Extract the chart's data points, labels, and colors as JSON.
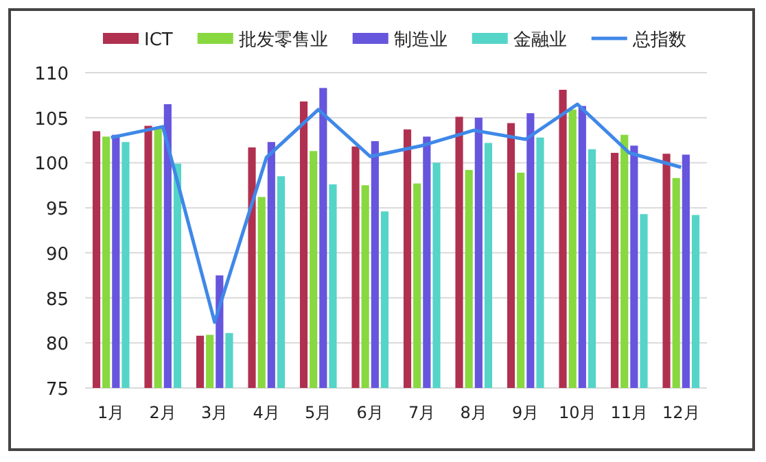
{
  "chart_data": {
    "type": "bar",
    "categories": [
      "1月",
      "2月",
      "3月",
      "4月",
      "5月",
      "6月",
      "7月",
      "8月",
      "9月",
      "10月",
      "11月",
      "12月"
    ],
    "series": [
      {
        "name": "ICT",
        "color": "#b03050",
        "values": [
          103.5,
          104.1,
          80.8,
          101.7,
          106.8,
          101.8,
          103.7,
          105.1,
          104.4,
          108.1,
          101.1,
          101.0
        ]
      },
      {
        "name": "批发零售业",
        "color": "#88d840",
        "values": [
          102.9,
          103.8,
          80.9,
          96.2,
          101.3,
          97.5,
          97.7,
          99.2,
          98.9,
          105.9,
          103.1,
          98.3
        ]
      },
      {
        "name": "制造业",
        "color": "#6655dd",
        "values": [
          103.1,
          106.5,
          87.5,
          102.3,
          108.3,
          102.4,
          102.9,
          105.0,
          105.5,
          106.3,
          101.9,
          100.9
        ]
      },
      {
        "name": "金融业",
        "color": "#55d4c8",
        "values": [
          102.3,
          99.9,
          81.1,
          98.5,
          97.6,
          94.6,
          100.0,
          102.2,
          102.8,
          101.5,
          94.3,
          94.2
        ]
      },
      {
        "name": "总指数",
        "type": "line",
        "color": "#3f88e8",
        "values": [
          102.8,
          104.0,
          82.3,
          100.6,
          105.9,
          100.7,
          101.9,
          103.6,
          102.6,
          106.5,
          101.1,
          99.5
        ]
      }
    ],
    "ylim": [
      75,
      110
    ],
    "yticks": [
      75,
      80,
      85,
      90,
      95,
      100,
      105,
      110
    ],
    "grid": "y",
    "legend": "top"
  }
}
